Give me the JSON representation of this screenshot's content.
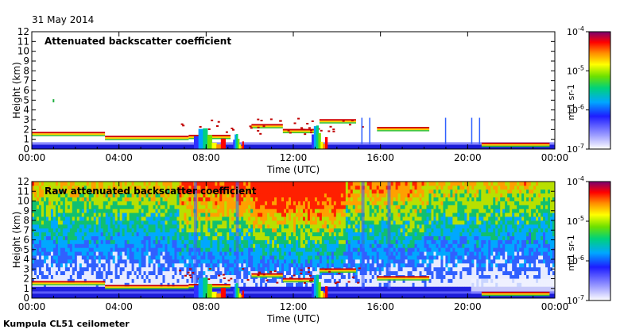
{
  "date": "31 May 2014",
  "footer": "Kumpula CL51 ceilometer",
  "chart_data": [
    {
      "type": "heatmap",
      "title": "Attenuated backscatter coefficient",
      "xlabel": "Time (UTC)",
      "ylabel": "Height (km)",
      "x_ticks": [
        "00:00",
        "04:00",
        "08:00",
        "12:00",
        "16:00",
        "20:00",
        "00:00"
      ],
      "y_ticks": [
        "0",
        "1",
        "2",
        "3",
        "4",
        "5",
        "6",
        "7",
        "8",
        "9",
        "10",
        "11",
        "12"
      ],
      "ylim": [
        0,
        12
      ],
      "colorbar": {
        "ticks": [
          "10-7",
          "10-6",
          "10-5",
          "10-4"
        ],
        "label": "m-1 sr-1",
        "scale": "log",
        "range": [
          "1e-7",
          "1e-4"
        ]
      },
      "grid": false
    },
    {
      "type": "heatmap",
      "title": "Raw attenuated backscatter coefficient",
      "xlabel": "Time (UTC)",
      "ylabel": "Height (km)",
      "x_ticks": [
        "00:00",
        "04:00",
        "08:00",
        "12:00",
        "16:00",
        "20:00",
        "00:00"
      ],
      "y_ticks": [
        "0",
        "1",
        "2",
        "3",
        "4",
        "5",
        "6",
        "7",
        "8",
        "9",
        "10",
        "11",
        "12"
      ],
      "ylim": [
        0,
        12
      ],
      "colorbar": {
        "ticks": [
          "10-7",
          "10-6",
          "10-5",
          "10-4"
        ],
        "label": "m-1 sr-1",
        "scale": "log",
        "range": [
          "1e-7",
          "1e-4"
        ]
      },
      "grid": false
    }
  ]
}
